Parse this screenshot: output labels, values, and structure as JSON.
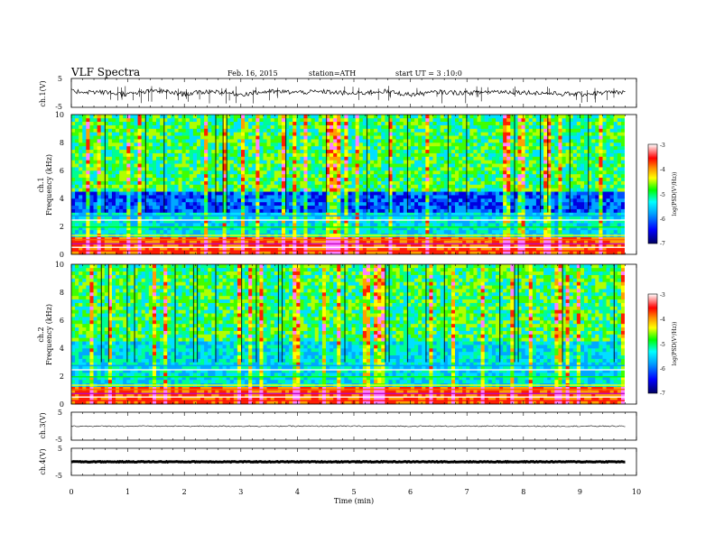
{
  "header": {
    "title": "VLF Spectra",
    "date": "Feb. 16, 2015",
    "station": "station=ATH",
    "start": "start UT = 3 :10:0"
  },
  "chart_data": [
    {
      "type": "line",
      "panel": "ch1-waveform",
      "ylabel": "ch.1(V)",
      "yticks": [
        "5",
        "-5"
      ],
      "ylim": [
        -5,
        5
      ],
      "x": [
        0,
        0.5,
        1,
        1.5,
        2,
        2.5,
        3,
        3.5,
        4,
        4.5,
        5,
        5.5,
        6,
        6.5,
        7,
        7.5,
        8,
        8.5,
        9,
        9.5,
        9.8
      ],
      "y": [
        0.5,
        0.3,
        -0.5,
        0.8,
        -0.4,
        0.6,
        -0.5,
        0.5,
        0.2,
        0.4,
        -0.3,
        0.6,
        -0.6,
        0.3,
        0.0,
        0.5,
        0.2,
        -0.2,
        -0.5,
        0.2,
        0.1
      ]
    },
    {
      "type": "heatmap",
      "panel": "ch1-spectrogram",
      "ylabel": "ch.1",
      "ylabel2": "Frequency (kHz)",
      "yticks": [
        "0",
        "2",
        "4",
        "6",
        "8",
        "10"
      ],
      "ylim": [
        0,
        10
      ],
      "xlim": [
        0,
        10
      ],
      "colorbar": {
        "label": "log(PSD(V²/Hz))",
        "ticks": [
          "-3",
          "-4",
          "-5",
          "-6",
          "-7"
        ],
        "range": [
          -7,
          -3
        ]
      }
    },
    {
      "type": "heatmap",
      "panel": "ch2-spectrogram",
      "ylabel": "ch.2",
      "ylabel2": "Frequency (kHz)",
      "yticks": [
        "0",
        "2",
        "4",
        "6",
        "8",
        "10"
      ],
      "ylim": [
        0,
        10
      ],
      "xlim": [
        0,
        10
      ],
      "colorbar": {
        "label": "log(PSD(V²/Hz))",
        "ticks": [
          "-3",
          "-4",
          "-5",
          "-6",
          "-7"
        ],
        "range": [
          -7,
          -3
        ]
      }
    },
    {
      "type": "line",
      "panel": "ch3-waveform",
      "ylabel": "ch.3(V)",
      "yticks": [
        "5",
        "-5"
      ],
      "ylim": [
        -5,
        5
      ],
      "x": [
        0,
        9.8
      ],
      "y": [
        0,
        0
      ]
    },
    {
      "type": "line",
      "panel": "ch4-waveform",
      "ylabel": "ch.4(V)",
      "yticks": [
        "5",
        "-5"
      ],
      "ylim": [
        -5,
        5
      ],
      "x": [
        0,
        9.8
      ],
      "y": [
        0,
        0
      ]
    }
  ],
  "xaxis": {
    "label": "Time (min)",
    "ticks": [
      "0",
      "1",
      "2",
      "3",
      "4",
      "5",
      "6",
      "7",
      "8",
      "9",
      "10"
    ],
    "xlim": [
      0,
      10
    ]
  },
  "colors": {
    "spec_low": "#0000a0",
    "spec_mid": "#00c8ff",
    "spec_green": "#00ff00",
    "spec_yellow": "#ffff00",
    "spec_red": "#ff0000",
    "spec_white": "#ffffff"
  }
}
